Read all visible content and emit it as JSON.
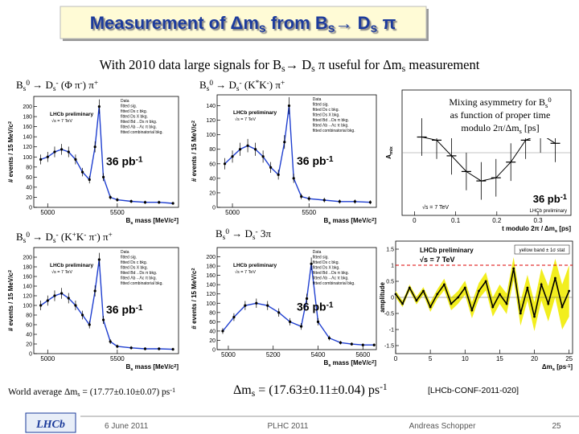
{
  "header": {
    "title": [
      "Measurement of Δm",
      "s",
      " from B",
      "s",
      "→ D",
      "s",
      " π"
    ]
  },
  "subtitle": [
    "With 2010 data large signals for B",
    "s",
    "→ D",
    "s",
    " π useful for Δm",
    "s",
    " measurement"
  ],
  "plots": [
    {
      "type": "mass",
      "label": [
        "B",
        "s",
        "0",
        " → D",
        "s",
        "-",
        " (Φ π",
        "-",
        ") π",
        "+"
      ],
      "y_label": [
        "# events / 15 MeV/c",
        "2"
      ],
      "x_label": [
        "B",
        "s",
        " mass [MeV/c",
        "2",
        "]"
      ],
      "xlim": [
        4900,
        5940
      ],
      "ylim": [
        0,
        220
      ],
      "xticks": [
        5000,
        5500
      ],
      "yticks": [
        0,
        20,
        40,
        60,
        80,
        100,
        120,
        140,
        160,
        180,
        200
      ],
      "preliminary": "LHCb preliminary",
      "energy": "√s = 7 TeV",
      "lumi": [
        "36 pb",
        "-1"
      ],
      "legend": [
        "Data",
        "fitted sig.",
        "fitted Ds c bkg.",
        "fitted Ds X bkg.",
        "fitted Bd→Ds π bkg.",
        "fitted Λb→Λc π bkg.",
        "fitted combinatorial bkg."
      ],
      "data": {
        "x": [
          4950,
          5000,
          5050,
          5100,
          5150,
          5200,
          5250,
          5300,
          5340,
          5370,
          5400,
          5450,
          5500,
          5600,
          5700,
          5800,
          5900
        ],
        "values": [
          95,
          100,
          110,
          115,
          110,
          95,
          70,
          55,
          120,
          200,
          60,
          20,
          15,
          12,
          10,
          10,
          8
        ]
      }
    },
    {
      "type": "mass",
      "label": [
        "B",
        "s",
        "0",
        " → D",
        "s",
        "-",
        " (K",
        "*",
        "K",
        "-",
        ") π",
        "+"
      ],
      "y_label": [
        "# events / 15 MeV/c",
        "2"
      ],
      "x_label": [
        "B",
        "s",
        " mass [MeV/c",
        "2",
        "]"
      ],
      "xlim": [
        4900,
        5940
      ],
      "ylim": [
        0,
        155
      ],
      "xticks": [
        5000,
        5500
      ],
      "yticks": [
        0,
        20,
        40,
        60,
        80,
        100,
        120,
        140
      ],
      "preliminary": "LHCb preliminary",
      "energy": "√s = 7 TeV",
      "lumi": [
        "36 pb",
        "-1"
      ],
      "legend": [
        "Data",
        "fitted sig.",
        "fitted Ds c bkg.",
        "fitted Ds X bkg.",
        "fitted Bd→Ds π bkg.",
        "fitted Λb→Λc π bkg.",
        "fitted combinatorial bkg."
      ],
      "data": {
        "x": [
          4950,
          5000,
          5050,
          5100,
          5150,
          5200,
          5250,
          5300,
          5340,
          5370,
          5400,
          5450,
          5500,
          5600,
          5700,
          5800,
          5900
        ],
        "values": [
          60,
          70,
          80,
          85,
          80,
          70,
          55,
          45,
          90,
          140,
          40,
          15,
          12,
          10,
          8,
          8,
          7
        ]
      }
    },
    {
      "type": "asymmetry",
      "y_label": [
        "A",
        "mix"
      ],
      "x_label": [
        "t modulo 2π / Δm",
        "s",
        " [ps]"
      ],
      "xlim": [
        -0.03,
        0.38
      ],
      "ylim": [
        -1,
        1
      ],
      "xticks": [
        0,
        0.1,
        0.2,
        0.3
      ],
      "yticks": [],
      "preliminary": "LHCb preliminary",
      "energy": "√s = 7 TeV",
      "lumi": [
        "36 pb",
        "-1"
      ],
      "data": {
        "x": [
          0.018,
          0.054,
          0.09,
          0.126,
          0.162,
          0.198,
          0.234,
          0.27,
          0.306,
          0.342
        ],
        "values": [
          0.25,
          0.2,
          -0.05,
          -0.3,
          -0.45,
          -0.4,
          -0.15,
          0.2,
          0.3,
          0.15
        ],
        "errors": [
          0.3,
          0.3,
          0.3,
          0.3,
          0.3,
          0.3,
          0.3,
          0.3,
          0.3,
          0.3
        ]
      }
    },
    {
      "type": "mass",
      "label": [
        "B",
        "s",
        "0",
        " → D",
        "s",
        "-",
        " (K",
        "+",
        "K",
        "-",
        " π",
        "-",
        ") π",
        "+"
      ],
      "y_label": [
        "# events / 15 MeV/c",
        "2"
      ],
      "x_label": [
        "B",
        "s",
        " mass [MeV/c",
        "2",
        "]"
      ],
      "xlim": [
        4900,
        5940
      ],
      "ylim": [
        0,
        220
      ],
      "xticks": [
        5000,
        5500
      ],
      "yticks": [
        0,
        20,
        40,
        60,
        80,
        100,
        120,
        140,
        160,
        180,
        200
      ],
      "preliminary": "LHCb preliminary",
      "energy": "√s = 7 TeV",
      "lumi": [
        "36 pb",
        "-1"
      ],
      "legend": [
        "Data",
        "fitted sig.",
        "fitted Ds c bkg.",
        "fitted Ds X bkg.",
        "fitted Bd→Ds π bkg.",
        "fitted Λb→Λc π bkg.",
        "fitted combinatorial bkg."
      ],
      "data": {
        "x": [
          4950,
          5000,
          5050,
          5100,
          5150,
          5200,
          5250,
          5300,
          5340,
          5370,
          5400,
          5450,
          5500,
          5600,
          5700,
          5800,
          5900
        ],
        "values": [
          100,
          110,
          120,
          125,
          115,
          100,
          80,
          60,
          130,
          195,
          70,
          25,
          15,
          12,
          10,
          10,
          9
        ]
      }
    },
    {
      "type": "mass",
      "label": [
        "B",
        "s",
        "0",
        " → D",
        "s",
        "-",
        "  3π"
      ],
      "y_label": [
        "# events / 15 MeV/c",
        "2"
      ],
      "x_label": [
        "B",
        "s",
        " mass [MeV/c",
        "2",
        "]"
      ],
      "xlim": [
        4950,
        5660
      ],
      "ylim": [
        0,
        220
      ],
      "xticks": [
        5000,
        5200,
        5400,
        5600
      ],
      "yticks": [
        0,
        20,
        40,
        60,
        80,
        100,
        120,
        140,
        160,
        180,
        200
      ],
      "preliminary": "LHCb preliminary",
      "energy": "√s = 7 TeV",
      "lumi": [
        "36 pb",
        "-1"
      ],
      "legend": [
        "Data",
        "fitted sig.",
        "fitted Ds c bkg.",
        "fitted Ds X bkg.",
        "fitted Bd→Ds π bkg.",
        "fitted Λb→Λc π bkg.",
        "fitted combinatorial bkg."
      ],
      "data": {
        "x": [
          4975,
          5025,
          5075,
          5125,
          5175,
          5225,
          5275,
          5325,
          5350,
          5370,
          5400,
          5450,
          5500,
          5550,
          5600,
          5650
        ],
        "values": [
          40,
          70,
          95,
          100,
          95,
          80,
          60,
          50,
          110,
          185,
          60,
          25,
          15,
          12,
          10,
          10
        ]
      }
    },
    {
      "type": "amplitude",
      "y_label": [
        "amplitude"
      ],
      "x_label": [
        "Δm",
        "s",
        " [ps",
        "-1",
        "]"
      ],
      "xlim": [
        0,
        25.5
      ],
      "ylim": [
        -1.75,
        1.75
      ],
      "xticks": [
        0,
        5,
        10,
        15,
        20,
        25
      ],
      "yticks": [
        -1.5,
        -1,
        -0.5,
        0,
        0.5,
        1,
        1.5
      ],
      "preliminary": "LHCb preliminary",
      "energy": "√s = 7 TeV",
      "band_note": "yellow band ± 1σ stat",
      "data": {
        "x": [
          0,
          1,
          2,
          3,
          4,
          5,
          6,
          7,
          8,
          9,
          10,
          11,
          12,
          13,
          14,
          15,
          16,
          17,
          18,
          19,
          20,
          21,
          22,
          23,
          24,
          25
        ],
        "values": [
          0.1,
          -0.2,
          0.3,
          -0.1,
          0.2,
          -0.3,
          0.1,
          0.4,
          -0.2,
          0.0,
          0.3,
          -0.4,
          0.2,
          0.5,
          -0.3,
          0.1,
          -0.2,
          0.9,
          -0.5,
          0.3,
          -0.6,
          0.4,
          -0.2,
          0.6,
          -0.3,
          0.2
        ],
        "errors": [
          0.1,
          0.1,
          0.1,
          0.12,
          0.12,
          0.15,
          0.15,
          0.18,
          0.2,
          0.2,
          0.22,
          0.25,
          0.25,
          0.28,
          0.3,
          0.3,
          0.32,
          0.35,
          0.38,
          0.4,
          0.45,
          0.5,
          0.55,
          0.6,
          0.7,
          0.8
        ]
      }
    }
  ],
  "note": {
    "line1": [
      "Mixing asymmetry for B",
      "s",
      "0"
    ],
    "line2": "as function of proper time",
    "line3": [
      "modulo 2π/Δm",
      "s",
      " [ps]"
    ]
  },
  "results": {
    "world_average": [
      "World average Δm",
      "s",
      " = (17.77±0.10±0.07) ps",
      "-1"
    ],
    "measured": [
      "Δm",
      "s",
      " = (17.63±0.11±0.04) ps",
      "-1"
    ],
    "reference": "[LHCb-CONF-2011-020]"
  },
  "footer": {
    "logo": "LHCb",
    "date": "6 June 2011",
    "conference": "PLHC 2011",
    "author": "Andreas Schopper",
    "page": "25"
  }
}
